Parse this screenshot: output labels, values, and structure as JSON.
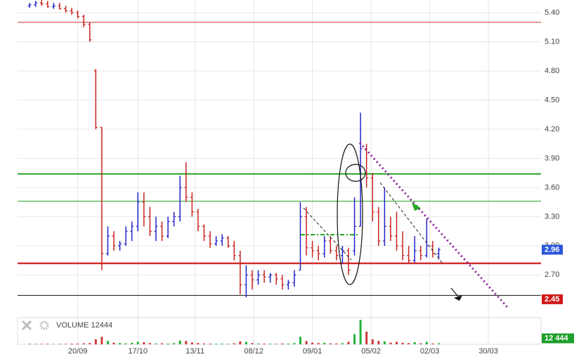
{
  "chart_data": {
    "type": "ohlc",
    "up_color": "#2323c8",
    "down_color": "#c82323",
    "volume_up_color": "#22b33a",
    "volume_down_color": "#d23a3a",
    "xlim": [
      0,
      174
    ],
    "xticks": [
      {
        "value": 20,
        "label": "20/09"
      },
      {
        "value": 40,
        "label": "17/10"
      },
      {
        "value": 59,
        "label": "13/11"
      },
      {
        "value": 78.5,
        "label": "08/12"
      },
      {
        "value": 98,
        "label": "09/01"
      },
      {
        "value": 117.5,
        "label": "05/02"
      },
      {
        "value": 137,
        "label": "02/03"
      },
      {
        "value": 156.5,
        "label": "30/03"
      }
    ],
    "ylim": [
      2.29,
      5.53
    ],
    "yticks": [
      {
        "value": 2.7,
        "label": "2.70"
      },
      {
        "value": 3.0,
        "label": "3.00"
      },
      {
        "value": 3.3,
        "label": "3.30"
      },
      {
        "value": 3.6,
        "label": "3.60"
      },
      {
        "value": 3.9,
        "label": "3.90"
      },
      {
        "value": 4.2,
        "label": "4.20"
      },
      {
        "value": 4.5,
        "label": "4.50"
      },
      {
        "value": 4.8,
        "label": "4.80"
      },
      {
        "value": 5.1,
        "label": "5.10"
      },
      {
        "value": 5.4,
        "label": "5.40"
      }
    ],
    "grid": true,
    "levels": [
      {
        "value": 5.3,
        "color": "#d03030",
        "width": 1
      },
      {
        "value": 3.74,
        "color": "#22a022",
        "width": 2
      },
      {
        "value": 3.46,
        "color": "#22a022",
        "width": 1
      },
      {
        "value": 2.82,
        "color": "#d03030",
        "width": 2.5
      },
      {
        "value": 2.49,
        "color": "#111111",
        "width": 1
      }
    ],
    "x": [
      4,
      6,
      8,
      10,
      12,
      14,
      16,
      18,
      20,
      22,
      24,
      26,
      28,
      30,
      32,
      34,
      36,
      38,
      40,
      42,
      44,
      46,
      48,
      50,
      52,
      54,
      56,
      58,
      60,
      62,
      64,
      66,
      68,
      70,
      72,
      74,
      76,
      78,
      80,
      82,
      84,
      86,
      88,
      90,
      92,
      94,
      96,
      98,
      100,
      102,
      104,
      106,
      108,
      110,
      112,
      114,
      116,
      118,
      120,
      122,
      124,
      126,
      128,
      130,
      132,
      134,
      136,
      138,
      140
    ],
    "open": [
      5.47,
      5.48,
      5.5,
      5.49,
      5.46,
      5.47,
      5.44,
      5.42,
      5.4,
      5.36,
      5.28,
      4.8,
      4.22,
      2.92,
      3.1,
      3.0,
      3.02,
      3.15,
      3.2,
      3.45,
      3.3,
      3.15,
      3.2,
      3.1,
      3.25,
      3.3,
      3.6,
      3.5,
      3.35,
      3.2,
      3.1,
      3.02,
      3.05,
      3.08,
      3.0,
      2.9,
      2.6,
      2.7,
      2.65,
      2.7,
      2.68,
      2.7,
      2.66,
      2.6,
      2.62,
      2.75,
      3.3,
      2.98,
      2.95,
      2.92,
      3.05,
      2.95,
      2.9,
      2.95,
      2.95,
      3.2,
      4.0,
      3.7,
      3.35,
      3.05,
      3.2,
      3.1,
      3.0,
      2.9,
      2.85,
      2.95,
      2.9,
      3.0,
      2.92
    ],
    "high": [
      5.5,
      5.52,
      5.53,
      5.52,
      5.5,
      5.5,
      5.47,
      5.45,
      5.42,
      5.38,
      5.3,
      4.82,
      4.22,
      3.2,
      3.15,
      3.05,
      3.2,
      3.25,
      3.55,
      3.55,
      3.4,
      3.3,
      3.25,
      3.3,
      3.35,
      3.72,
      3.86,
      3.55,
      3.38,
      3.22,
      3.15,
      3.1,
      3.12,
      3.1,
      3.05,
      2.95,
      2.8,
      2.75,
      2.75,
      2.75,
      2.72,
      2.72,
      2.7,
      2.65,
      2.75,
      3.45,
      3.4,
      3.05,
      3.0,
      3.1,
      3.1,
      3.0,
      3.0,
      2.98,
      3.5,
      4.37,
      4.05,
      3.75,
      3.4,
      3.6,
      3.3,
      3.35,
      3.15,
      3.0,
      3.1,
      3.0,
      3.28,
      3.05,
      2.98
    ],
    "low": [
      5.45,
      5.46,
      5.47,
      5.45,
      5.44,
      5.43,
      5.4,
      5.38,
      5.34,
      5.25,
      5.1,
      4.2,
      2.75,
      2.9,
      2.95,
      2.95,
      3.0,
      3.05,
      3.15,
      3.2,
      3.1,
      3.05,
      3.05,
      3.08,
      3.2,
      3.25,
      3.45,
      3.3,
      3.15,
      3.05,
      2.98,
      3.0,
      3.0,
      2.98,
      2.85,
      2.5,
      2.47,
      2.55,
      2.6,
      2.62,
      2.62,
      2.6,
      2.55,
      2.55,
      2.58,
      2.75,
      2.9,
      2.88,
      2.85,
      2.88,
      2.92,
      2.85,
      2.82,
      2.7,
      2.9,
      3.2,
      3.6,
      3.25,
      3.0,
      3.0,
      3.05,
      2.95,
      2.85,
      2.82,
      2.83,
      2.85,
      2.88,
      2.88,
      2.86
    ],
    "close": [
      5.48,
      5.5,
      5.49,
      5.46,
      5.47,
      5.44,
      5.42,
      5.4,
      5.36,
      5.28,
      5.12,
      4.22,
      2.92,
      3.1,
      3.0,
      3.02,
      3.15,
      3.2,
      3.45,
      3.3,
      3.15,
      3.2,
      3.1,
      3.25,
      3.3,
      3.6,
      3.5,
      3.35,
      3.2,
      3.1,
      3.02,
      3.05,
      3.08,
      3.0,
      2.9,
      2.6,
      2.7,
      2.65,
      2.7,
      2.68,
      2.7,
      2.66,
      2.6,
      2.62,
      2.7,
      3.3,
      2.98,
      2.95,
      2.92,
      3.05,
      2.95,
      2.9,
      2.95,
      2.75,
      3.2,
      4.0,
      3.7,
      3.35,
      3.05,
      3.2,
      3.1,
      3.0,
      2.9,
      2.85,
      2.95,
      2.9,
      3.0,
      2.92,
      2.96
    ],
    "volume": [
      8000,
      6000,
      5000,
      7000,
      4000,
      6000,
      5000,
      8000,
      9000,
      12000,
      15000,
      60000,
      90000,
      40000,
      20000,
      15000,
      12000,
      18000,
      30000,
      25000,
      15000,
      10000,
      12000,
      9000,
      14000,
      45000,
      40000,
      22000,
      15000,
      10000,
      8000,
      7000,
      9000,
      6000,
      12000,
      35000,
      30000,
      15000,
      10000,
      9000,
      8000,
      7000,
      10000,
      8000,
      15000,
      90000,
      40000,
      20000,
      15000,
      18000,
      12000,
      10000,
      14000,
      30000,
      120000,
      290000,
      150000,
      60000,
      40000,
      35000,
      20000,
      30000,
      18000,
      15000,
      25000,
      12000,
      30000,
      10000,
      12444
    ],
    "volume_lim": [
      0,
      300000
    ],
    "volume_name": "VOLUME",
    "volume_tag": {
      "value": 12444,
      "label": "12 444"
    },
    "marker_tag": {
      "value": 2.45,
      "label": "2.45"
    }
  }
}
